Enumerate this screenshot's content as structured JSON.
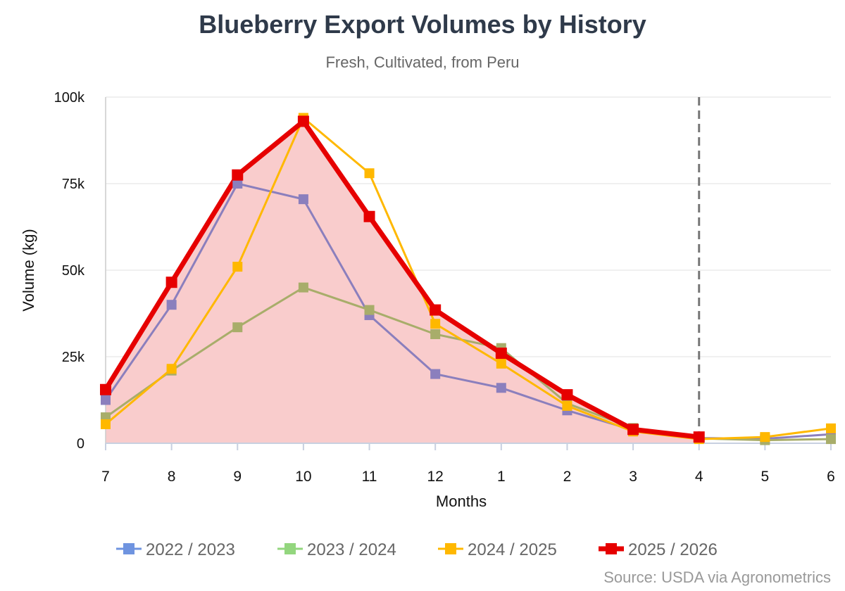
{
  "title": "Blueberry Export Volumes by History",
  "subtitle": "Fresh, Cultivated, from Peru",
  "source": "Source: USDA via Agronometrics",
  "chart_data": {
    "type": "line",
    "title": "Blueberry Export Volumes by History",
    "subtitle": "Fresh, Cultivated, from Peru",
    "xlabel": "Months",
    "ylabel": "Volume (kg)",
    "categories": [
      "7",
      "8",
      "9",
      "10",
      "11",
      "12",
      "1",
      "2",
      "3",
      "4",
      "5",
      "6"
    ],
    "y_ticks": [
      0,
      25000,
      50000,
      75000,
      100000
    ],
    "y_tick_labels": [
      "0",
      "25k",
      "50k",
      "75k",
      "100k"
    ],
    "ylim": [
      0,
      100000
    ],
    "grid": true,
    "legend_position": "bottom",
    "current_month_marker": "4",
    "series": [
      {
        "name": "2022 / 2023",
        "color": "#8b7fbd",
        "legend_color": "#6f94e0",
        "values": [
          12500,
          40000,
          75000,
          70500,
          37000,
          20000,
          16000,
          9500,
          3800,
          1500,
          1300,
          2600
        ]
      },
      {
        "name": "2023 / 2024",
        "color": "#a8ad6a",
        "legend_color": "#93d67e",
        "values": [
          7500,
          21000,
          33500,
          45000,
          38500,
          31500,
          27500,
          11500,
          4400,
          1400,
          900,
          1200
        ]
      },
      {
        "name": "2024 / 2025",
        "color": "#ffb800",
        "legend_color": "#ffb800",
        "values": [
          5500,
          21500,
          51000,
          94000,
          78000,
          34500,
          23000,
          10800,
          3400,
          1200,
          1800,
          4300
        ]
      },
      {
        "name": "2025 / 2026",
        "color": "#e60000",
        "legend_color": "#e60000",
        "area_fill": "#f9cccc",
        "values": [
          15500,
          46500,
          77500,
          93000,
          65500,
          38500,
          26000,
          14000,
          4000,
          1800,
          null,
          null
        ]
      }
    ]
  }
}
